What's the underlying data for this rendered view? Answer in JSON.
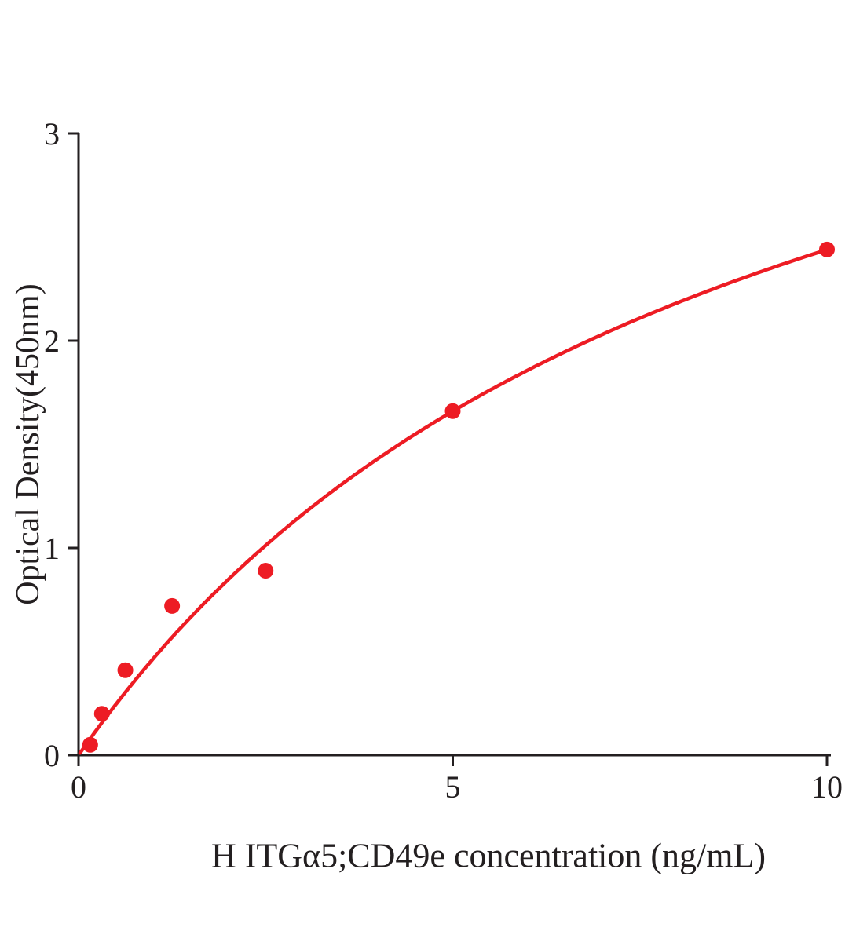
{
  "chart_data": {
    "type": "scatter",
    "title": "",
    "xlabel": "H ITGα5;CD49e concentration (ng/mL)",
    "ylabel": "Optical Density(450nm)",
    "x": [
      0.156,
      0.3125,
      0.625,
      1.25,
      2.5,
      5,
      10
    ],
    "y": [
      0.05,
      0.2,
      0.41,
      0.72,
      0.89,
      1.66,
      2.44
    ],
    "xlim": [
      0,
      10
    ],
    "ylim": [
      0,
      3
    ],
    "xticks": [
      0,
      5,
      10
    ],
    "yticks": [
      0,
      1,
      2,
      3
    ],
    "grid": false,
    "legend": "none",
    "point_color": "#ed1c24",
    "curve_color": "#ed1c24",
    "axis_color": "#231f20",
    "fit": {
      "type": "michaelis_menten",
      "vmax": 4.6,
      "km": 8.86,
      "x_start": 0.02,
      "x_end": 10
    }
  }
}
